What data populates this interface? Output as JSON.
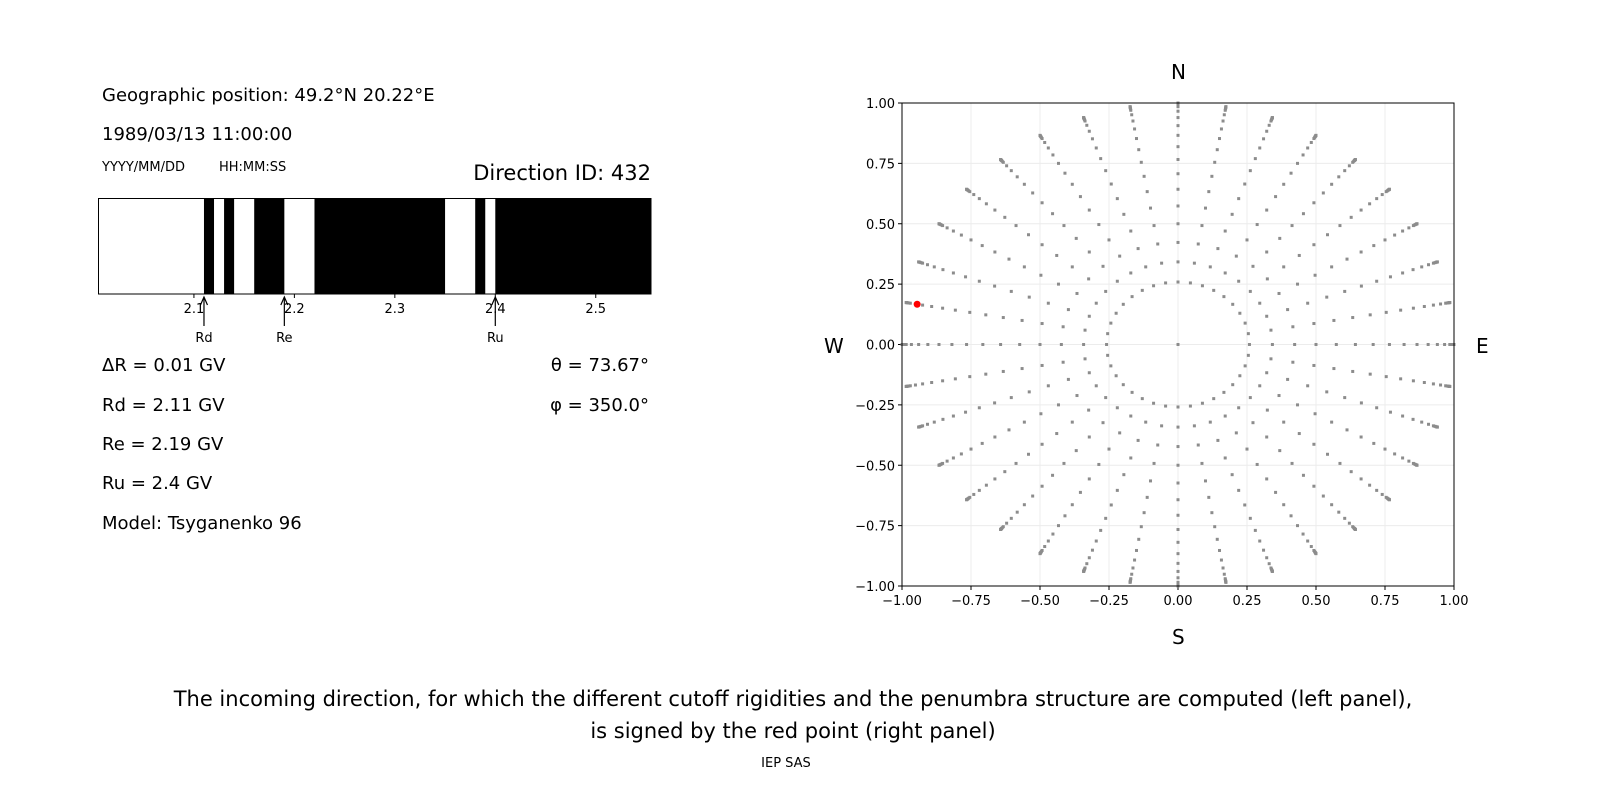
{
  "info": {
    "position": "Geographic position: 49.2°N 20.22°E",
    "datetime": "1989/03/13 11:00:00",
    "date_format": "YYYY/MM/DD",
    "time_format": "HH:MM:SS",
    "direction_id": "Direction ID: 432",
    "delta_r": "ΔR = 0.01 GV",
    "rd": "Rd = 2.11 GV",
    "re": "Re = 2.19 GV",
    "ru": "Ru = 2.4 GV",
    "model": "Model: Tsyganenko 96",
    "theta": "θ = 73.67°",
    "phi": "φ = 350.0°"
  },
  "compass": {
    "n": "N",
    "s": "S",
    "w": "W",
    "e": "E"
  },
  "caption": {
    "line1": "The incoming direction, for which the different cutoff rigidities and the penumbra structure are computed (left panel),",
    "line2": "is signed by the red point (right panel)",
    "credit": "IEP SAS"
  },
  "chart_data": [
    {
      "type": "bar",
      "xlim": [
        2.005,
        2.555
      ],
      "xticks": [
        "2.1",
        "2.2",
        "2.3",
        "2.4",
        "2.5"
      ],
      "forbidden_bands": [
        [
          2.11,
          2.12
        ],
        [
          2.13,
          2.14
        ],
        [
          2.16,
          2.19
        ],
        [
          2.22,
          2.35
        ],
        [
          2.38,
          2.39
        ],
        [
          2.4,
          2.555
        ]
      ],
      "markers": [
        {
          "label": "Rd",
          "value": 2.11
        },
        {
          "label": "Re",
          "value": 2.19
        },
        {
          "label": "Ru",
          "value": 2.4
        }
      ],
      "colors": {
        "forbidden": "#000000",
        "allowed": "#ffffff"
      }
    },
    {
      "type": "scatter",
      "xlim": [
        -1,
        1
      ],
      "ylim": [
        -1,
        1
      ],
      "xticks": [
        "−1.00",
        "−0.75",
        "−0.50",
        "−0.25",
        "0.00",
        "0.25",
        "0.50",
        "0.75",
        "1.00"
      ],
      "yticks": [
        "−1.00",
        "−0.75",
        "−0.50",
        "−0.25",
        "0.00",
        "0.25",
        "0.50",
        "0.75",
        "1.00"
      ],
      "grid": true,
      "azimuth_step_deg": 10,
      "zenith_angles_deg": [
        0,
        15,
        20,
        25,
        30,
        35,
        40,
        45,
        50,
        55,
        60,
        65,
        70,
        75,
        80,
        82,
        84,
        86,
        88,
        90
      ],
      "highlight": {
        "theta_deg": 73.67,
        "phi_deg": 350.0
      },
      "colors": {
        "points": "#8c8c8c",
        "highlight": "#ff0000"
      }
    }
  ]
}
